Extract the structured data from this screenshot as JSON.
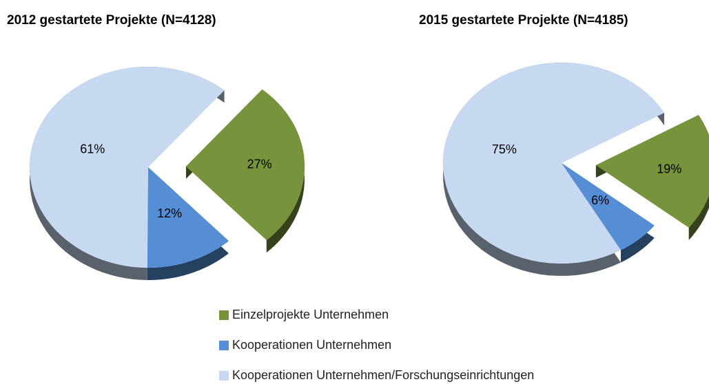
{
  "chart_data": [
    {
      "type": "pie",
      "title": "2012 gestartete Projekte (N=4128)",
      "categories": [
        "Einzelprojekte Unternehmen",
        "Kooperationen Unternehmen",
        "Kooperationen Unternehmen/Forschungseinrichtungen"
      ],
      "values": [
        27,
        12,
        61
      ],
      "value_labels": [
        "27%",
        "12%",
        "61%"
      ],
      "colors": [
        "#77933c",
        "#558ed5",
        "#c6d9f1"
      ],
      "legend": "bottom"
    },
    {
      "type": "pie",
      "title": "2015 gestartete Projekte (N=4185)",
      "categories": [
        "Einzelprojekte Unternehmen",
        "Kooperationen Unternehmen",
        "Kooperationen Unternehmen/Forschungseinrichtungen"
      ],
      "values": [
        19,
        6,
        75
      ],
      "value_labels": [
        "19%",
        "6%",
        "75%"
      ],
      "colors": [
        "#77933c",
        "#558ed5",
        "#c6d9f1"
      ],
      "legend": "bottom"
    }
  ]
}
